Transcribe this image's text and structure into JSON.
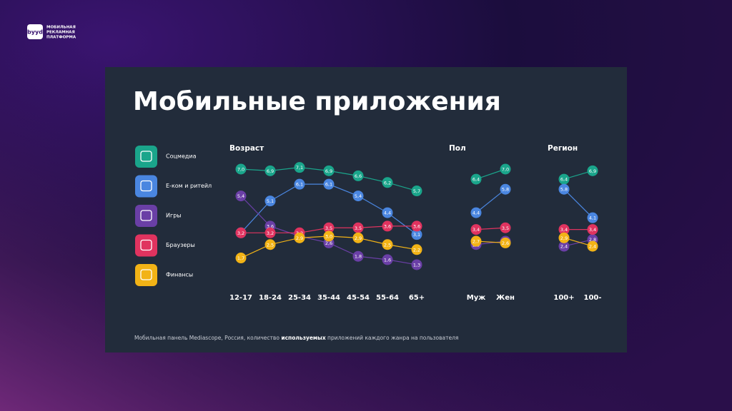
{
  "header": {
    "logo": "byyd",
    "brand": [
      "МОБИЛЬНАЯ",
      "РЕКЛАМНАЯ",
      "ПЛАТФОРМА"
    ]
  },
  "title": "Мобильные приложения",
  "legend": [
    {
      "name": "Соцмедиа",
      "color": "#1aa58b"
    },
    {
      "name": "Е-ком и ритейл",
      "color": "#4a86e0"
    },
    {
      "name": "Игры",
      "color": "#6a3fa6"
    },
    {
      "name": "Браузеры",
      "color": "#e0335f"
    },
    {
      "name": "Финансы",
      "color": "#f2b316"
    }
  ],
  "chart_data": [
    {
      "type": "line",
      "title": "Возраст",
      "categories": [
        "12-17",
        "18-24",
        "25-34",
        "35-44",
        "45-54",
        "55-64",
        "65+"
      ],
      "series": [
        {
          "values": [
            7.0,
            6.9,
            7.1,
            6.9,
            6.6,
            6.2,
            5.7
          ],
          "value_labels": [
            "7,0",
            "6,9",
            "7,1",
            "6,9",
            "6,6",
            "6,2",
            "5,7"
          ]
        },
        {
          "values": [
            3.2,
            5.1,
            6.1,
            6.1,
            5.4,
            4.4,
            3.1
          ],
          "value_labels": [
            "3,2",
            "5,1",
            "6,1",
            "6,1",
            "5,4",
            "4,4",
            "3,1"
          ]
        },
        {
          "values": [
            5.4,
            3.6,
            3.0,
            2.6,
            1.8,
            1.6,
            1.3
          ],
          "value_labels": [
            "5,4",
            "3,6",
            "3,0",
            "2,6",
            "1,8",
            "1,6",
            "1,3"
          ]
        },
        {
          "values": [
            3.2,
            3.2,
            3.2,
            3.5,
            3.5,
            3.6,
            3.6
          ],
          "value_labels": [
            "3,2",
            "3,2",
            "3,2",
            "3,5",
            "3,5",
            "3,6",
            "3,6"
          ]
        },
        {
          "values": [
            1.7,
            2.5,
            2.9,
            3.0,
            2.9,
            2.5,
            2.2
          ],
          "value_labels": [
            "1,7",
            "2,5",
            "2,9",
            "3,0",
            "2,9",
            "2,5",
            "2,2"
          ]
        }
      ]
    },
    {
      "type": "line",
      "title": "Пол",
      "categories": [
        "Муж",
        "Жен"
      ],
      "series": [
        {
          "values": [
            6.4,
            7.0
          ],
          "value_labels": [
            "6,4",
            "7,0"
          ]
        },
        {
          "values": [
            4.4,
            5.8
          ],
          "value_labels": [
            "4,4",
            "5,8"
          ]
        },
        {
          "values": [
            2.5,
            2.7
          ],
          "value_labels": [
            "2,5",
            "2,7"
          ]
        },
        {
          "values": [
            3.4,
            3.5
          ],
          "value_labels": [
            "3,4",
            "3,5"
          ]
        },
        {
          "values": [
            2.7,
            2.6
          ],
          "value_labels": [
            "2,7",
            "2,6"
          ]
        }
      ]
    },
    {
      "type": "line",
      "title": "Регион",
      "categories": [
        "100+",
        "100-"
      ],
      "series": [
        {
          "values": [
            6.4,
            6.9
          ],
          "value_labels": [
            "6,4",
            "6,9"
          ]
        },
        {
          "values": [
            5.8,
            4.1
          ],
          "value_labels": [
            "5,8",
            "4,1"
          ]
        },
        {
          "values": [
            2.4,
            2.8
          ],
          "value_labels": [
            "2,4",
            "2,8"
          ]
        },
        {
          "values": [
            3.4,
            3.4
          ],
          "value_labels": [
            "3,4",
            "3,4"
          ]
        },
        {
          "values": [
            2.9,
            2.4
          ],
          "value_labels": [
            "2,9",
            "2,4"
          ]
        }
      ]
    }
  ],
  "footer": [
    "Мобильная панель Mediascope, Россия, количество ",
    "используемых",
    " приложений каждого жанра на пользователя"
  ]
}
